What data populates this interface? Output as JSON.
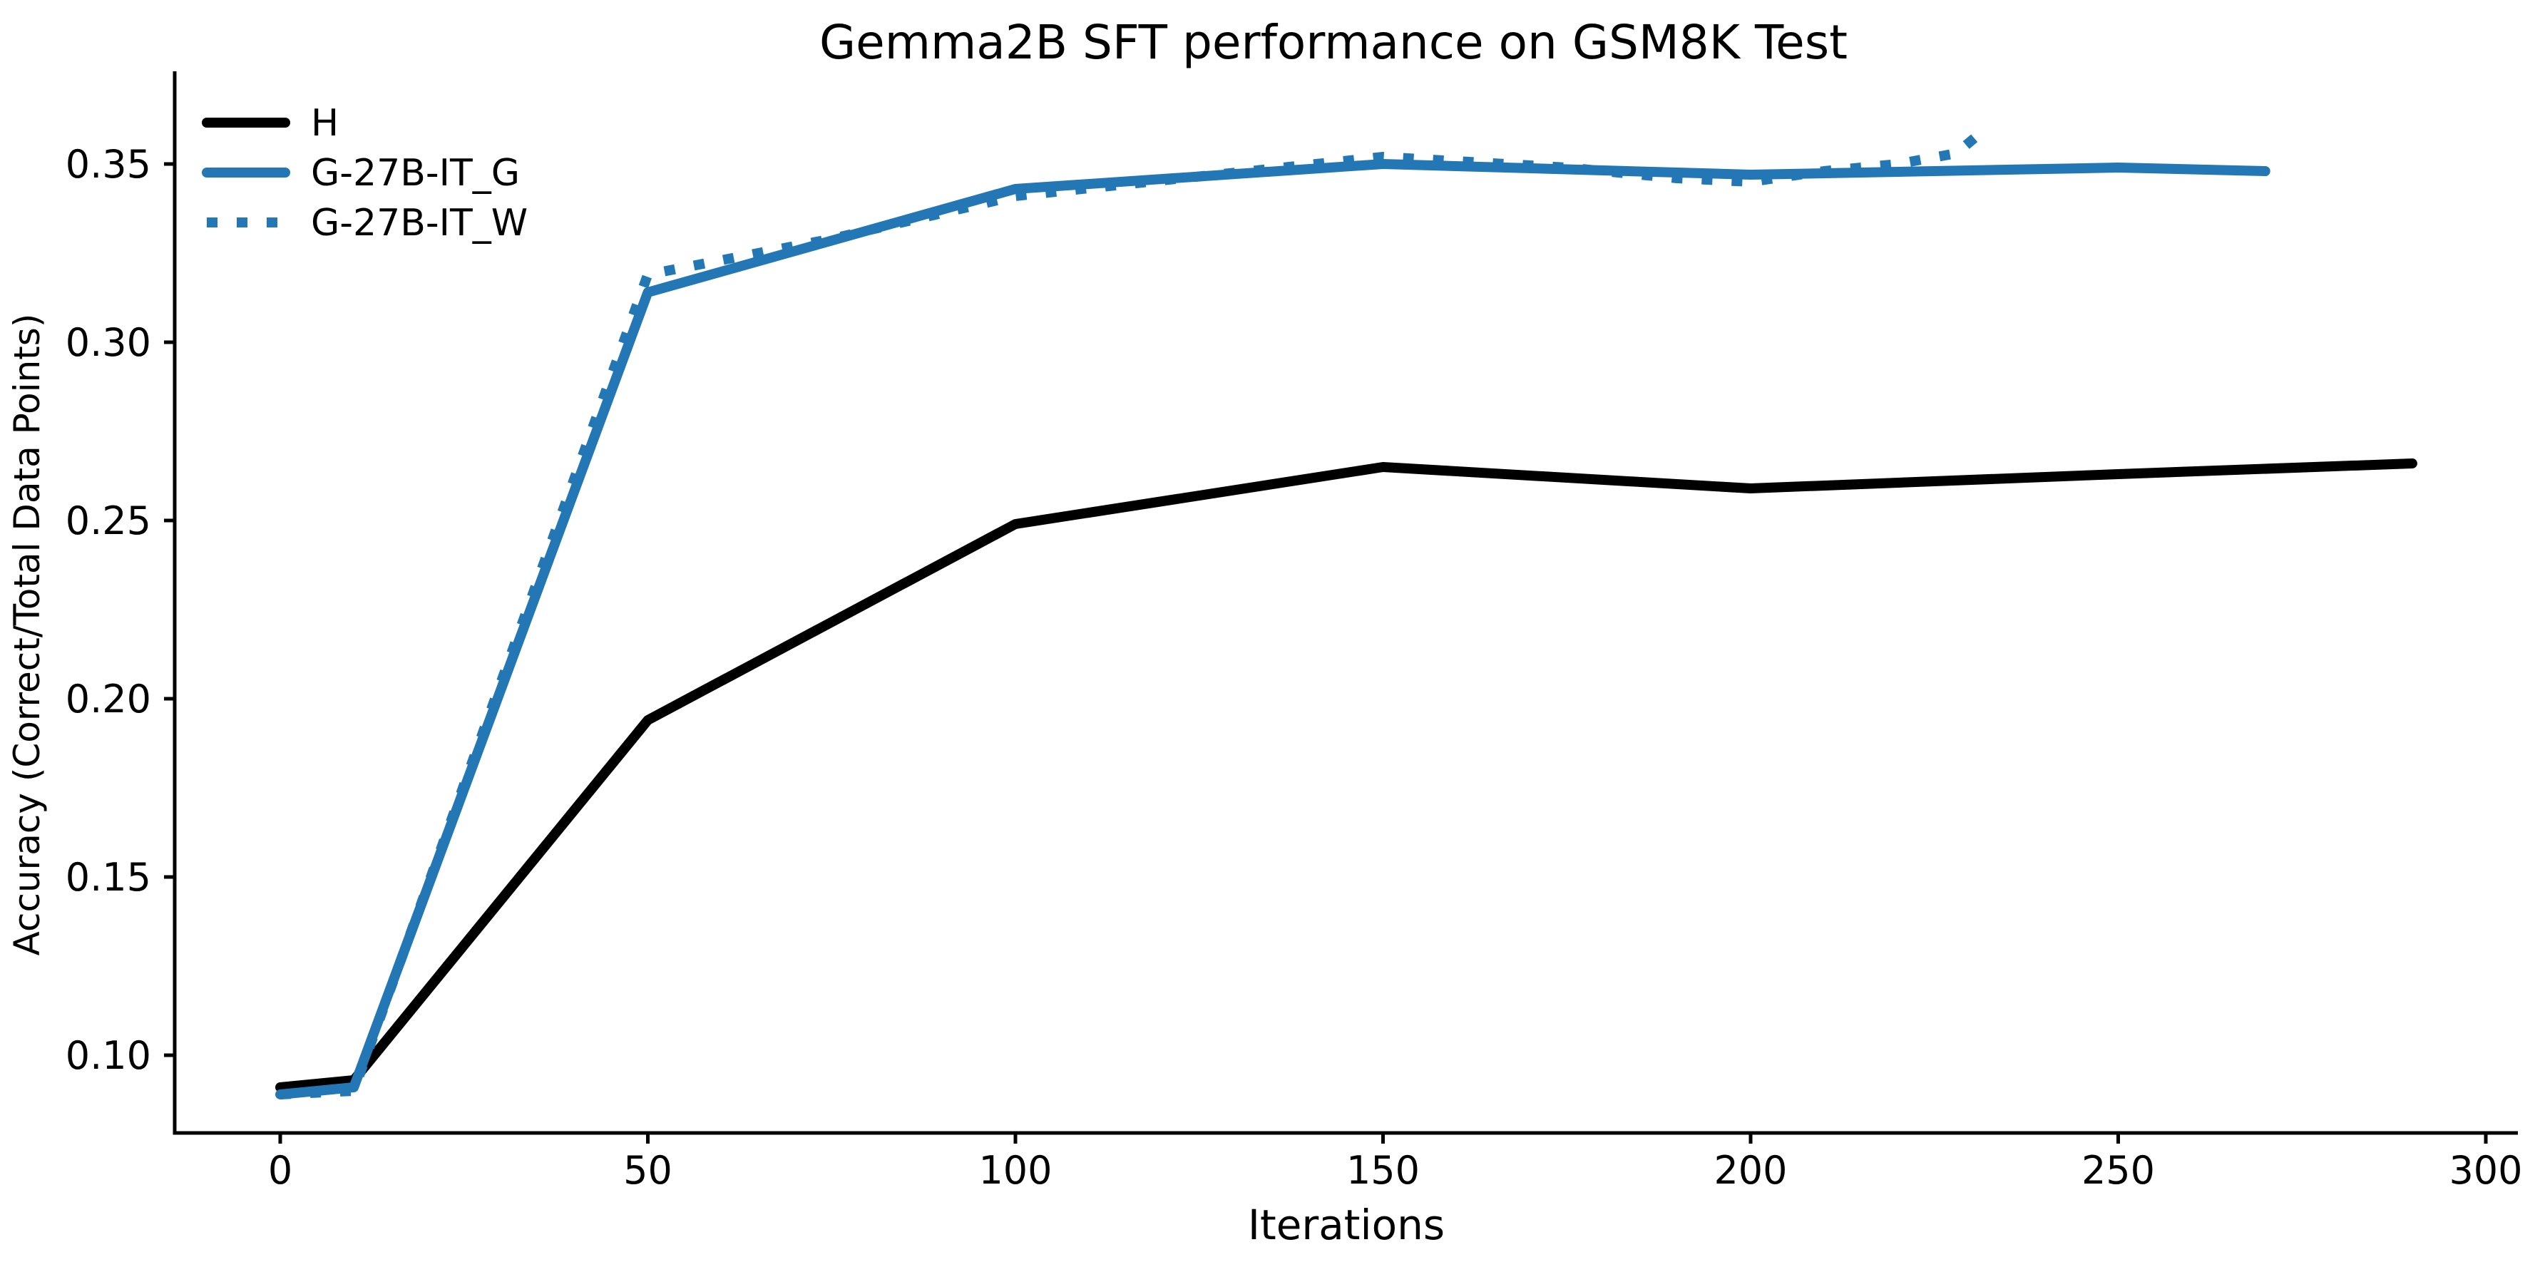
{
  "figure": {
    "background": "#ffffff",
    "accent_blue": "#2277b4",
    "line_black": "#000000"
  },
  "chart_data": {
    "type": "line",
    "title": "Gemma2B SFT performance on GSM8K Test",
    "xlabel": "Iterations",
    "ylabel": "Accuracy (Correct/Total Data Points)",
    "xlim": [
      -14,
      304
    ],
    "ylim": [
      0.078,
      0.376
    ],
    "grid": false,
    "legend_position": "upper left",
    "x_ticks": [
      0,
      50,
      100,
      150,
      200,
      250,
      300
    ],
    "x_tick_labels": [
      "0",
      "50",
      "100",
      "150",
      "200",
      "250",
      "300"
    ],
    "y_ticks": [
      0.1,
      0.15,
      0.2,
      0.25,
      0.3,
      0.35
    ],
    "y_tick_labels": [
      "0.10",
      "0.15",
      "0.20",
      "0.25",
      "0.30",
      "0.35"
    ],
    "series": [
      {
        "name": "H",
        "color": "#000000",
        "style": "solid",
        "x": [
          0,
          10,
          50,
          100,
          150,
          200,
          250,
          290
        ],
        "y": [
          0.091,
          0.093,
          0.194,
          0.249,
          0.265,
          0.259,
          0.263,
          0.266
        ]
      },
      {
        "name": "G-27B-IT_G",
        "color": "#2277b4",
        "style": "solid",
        "x": [
          0,
          10,
          50,
          100,
          150,
          200,
          250,
          270
        ],
        "y": [
          0.089,
          0.091,
          0.314,
          0.343,
          0.35,
          0.347,
          0.349,
          0.348
        ]
      },
      {
        "name": "G-27B-IT_W",
        "color": "#2277b4",
        "style": "dotted",
        "x": [
          0,
          10,
          50,
          75,
          100,
          150,
          175,
          190,
          200,
          210,
          220,
          228,
          232
        ],
        "y": [
          0.089,
          0.09,
          0.319,
          0.329,
          0.341,
          0.352,
          0.349,
          0.346,
          0.345,
          0.348,
          0.35,
          0.353,
          0.36
        ]
      }
    ]
  }
}
